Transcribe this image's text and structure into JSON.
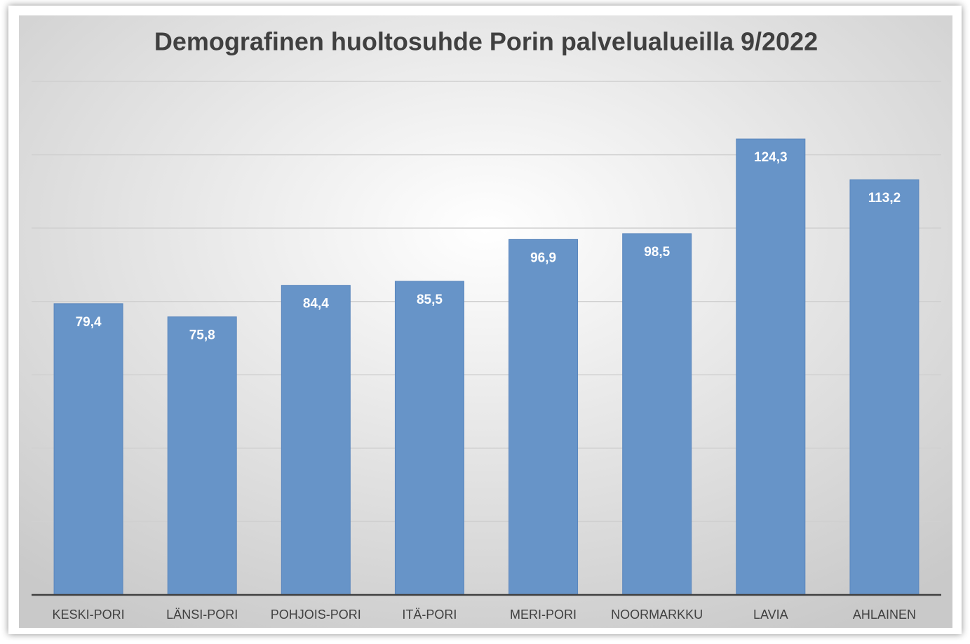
{
  "chart_data": {
    "type": "bar",
    "title": "Demografinen huoltosuhde  Porin palvelualueilla 9/2022",
    "categories": [
      "KESKI-PORI",
      "LÄNSI-PORI",
      "POHJOIS-PORI",
      "ITÄ-PORI",
      "MERI-PORI",
      "NOORMARKKU",
      "LAVIA",
      "AHLAINEN"
    ],
    "values": [
      79.4,
      75.8,
      84.4,
      85.5,
      96.9,
      98.5,
      124.3,
      113.2
    ],
    "value_labels": [
      "79,4",
      "75,8",
      "84,4",
      "85,5",
      "96,9",
      "98,5",
      "124,3",
      "113,2"
    ],
    "color": "#6794c8",
    "ylim": [
      0,
      140
    ],
    "yticks": [
      0,
      20,
      40,
      60,
      80,
      100,
      120,
      140
    ],
    "grid": true
  }
}
